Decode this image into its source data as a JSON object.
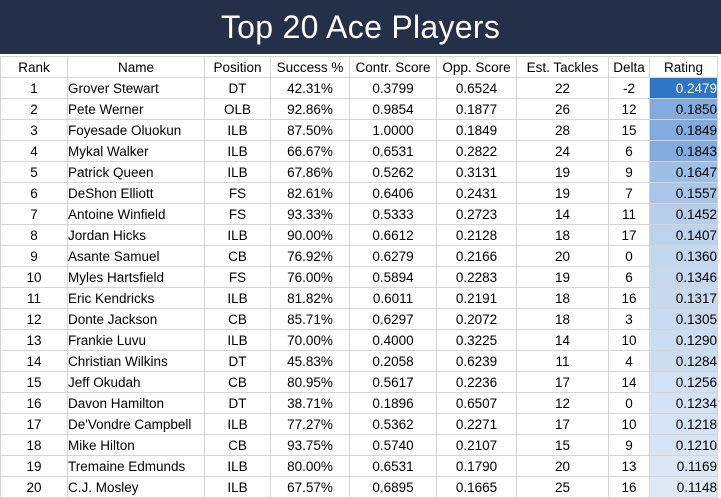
{
  "title": "Top 20 Ace Players",
  "columns": [
    "Rank",
    "Name",
    "Position",
    "Success %",
    "Contr. Score",
    "Opp. Score",
    "Est. Tackles",
    "Delta",
    "Rating"
  ],
  "rows": [
    {
      "rank": "1",
      "name": "Grover Stewart",
      "position": "DT",
      "success": "42.31%",
      "contr": "0.3799",
      "opp": "0.6524",
      "tackles": "22",
      "delta": "-2",
      "rating": "0.2479"
    },
    {
      "rank": "2",
      "name": "Pete Werner",
      "position": "OLB",
      "success": "92.86%",
      "contr": "0.9854",
      "opp": "0.1877",
      "tackles": "26",
      "delta": "12",
      "rating": "0.1850"
    },
    {
      "rank": "3",
      "name": "Foyesade Oluokun",
      "position": "ILB",
      "success": "87.50%",
      "contr": "1.0000",
      "opp": "0.1849",
      "tackles": "28",
      "delta": "15",
      "rating": "0.1849"
    },
    {
      "rank": "4",
      "name": "Mykal Walker",
      "position": "ILB",
      "success": "66.67%",
      "contr": "0.6531",
      "opp": "0.2822",
      "tackles": "24",
      "delta": "6",
      "rating": "0.1843"
    },
    {
      "rank": "5",
      "name": "Patrick Queen",
      "position": "ILB",
      "success": "67.86%",
      "contr": "0.5262",
      "opp": "0.3131",
      "tackles": "19",
      "delta": "9",
      "rating": "0.1647"
    },
    {
      "rank": "6",
      "name": "DeShon Elliott",
      "position": "FS",
      "success": "82.61%",
      "contr": "0.6406",
      "opp": "0.2431",
      "tackles": "19",
      "delta": "7",
      "rating": "0.1557"
    },
    {
      "rank": "7",
      "name": "Antoine Winfield",
      "position": "FS",
      "success": "93.33%",
      "contr": "0.5333",
      "opp": "0.2723",
      "tackles": "14",
      "delta": "11",
      "rating": "0.1452"
    },
    {
      "rank": "8",
      "name": "Jordan Hicks",
      "position": "ILB",
      "success": "90.00%",
      "contr": "0.6612",
      "opp": "0.2128",
      "tackles": "18",
      "delta": "17",
      "rating": "0.1407"
    },
    {
      "rank": "9",
      "name": "Asante Samuel",
      "position": "CB",
      "success": "76.92%",
      "contr": "0.6279",
      "opp": "0.2166",
      "tackles": "20",
      "delta": "0",
      "rating": "0.1360"
    },
    {
      "rank": "10",
      "name": "Myles Hartsfield",
      "position": "FS",
      "success": "76.00%",
      "contr": "0.5894",
      "opp": "0.2283",
      "tackles": "19",
      "delta": "6",
      "rating": "0.1346"
    },
    {
      "rank": "11",
      "name": "Eric Kendricks",
      "position": "ILB",
      "success": "81.82%",
      "contr": "0.6011",
      "opp": "0.2191",
      "tackles": "18",
      "delta": "16",
      "rating": "0.1317"
    },
    {
      "rank": "12",
      "name": "Donte Jackson",
      "position": "CB",
      "success": "85.71%",
      "contr": "0.6297",
      "opp": "0.2072",
      "tackles": "18",
      "delta": "3",
      "rating": "0.1305"
    },
    {
      "rank": "13",
      "name": "Frankie Luvu",
      "position": "ILB",
      "success": "70.00%",
      "contr": "0.4000",
      "opp": "0.3225",
      "tackles": "14",
      "delta": "10",
      "rating": "0.1290"
    },
    {
      "rank": "14",
      "name": "Christian Wilkins",
      "position": "DT",
      "success": "45.83%",
      "contr": "0.2058",
      "opp": "0.6239",
      "tackles": "11",
      "delta": "4",
      "rating": "0.1284"
    },
    {
      "rank": "15",
      "name": "Jeff Okudah",
      "position": "CB",
      "success": "80.95%",
      "contr": "0.5617",
      "opp": "0.2236",
      "tackles": "17",
      "delta": "14",
      "rating": "0.1256"
    },
    {
      "rank": "16",
      "name": "Davon Hamilton",
      "position": "DT",
      "success": "38.71%",
      "contr": "0.1896",
      "opp": "0.6507",
      "tackles": "12",
      "delta": "0",
      "rating": "0.1234"
    },
    {
      "rank": "17",
      "name": "De'Vondre Campbell",
      "position": "ILB",
      "success": "77.27%",
      "contr": "0.5362",
      "opp": "0.2271",
      "tackles": "17",
      "delta": "10",
      "rating": "0.1218"
    },
    {
      "rank": "18",
      "name": "Mike Hilton",
      "position": "CB",
      "success": "93.75%",
      "contr": "0.5740",
      "opp": "0.2107",
      "tackles": "15",
      "delta": "9",
      "rating": "0.1210"
    },
    {
      "rank": "19",
      "name": "Tremaine Edmunds",
      "position": "ILB",
      "success": "80.00%",
      "contr": "0.6531",
      "opp": "0.1790",
      "tackles": "20",
      "delta": "13",
      "rating": "0.1169"
    },
    {
      "rank": "20",
      "name": "C.J. Mosley",
      "position": "ILB",
      "success": "67.57%",
      "contr": "0.6895",
      "opp": "0.1665",
      "tackles": "25",
      "delta": "16",
      "rating": "0.1148"
    }
  ],
  "colors": {
    "banner_bg": "#243047",
    "banner_text": "#ffffff",
    "rating_scale_low": "#dfe9f6",
    "rating_scale_high": "#2e75c8"
  }
}
